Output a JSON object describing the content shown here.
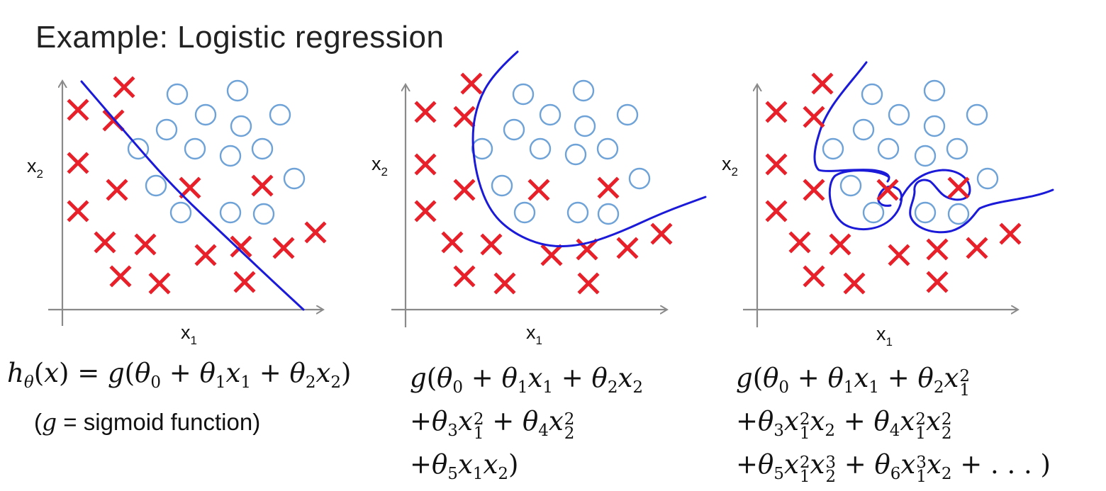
{
  "title": "Example: Logistic regression",
  "axes": {
    "x_label": "x",
    "x_sub": "1",
    "y_label": "x",
    "y_sub": "2"
  },
  "formula_1": {
    "lhs": "h",
    "sub_theta": "θ",
    "arg": "(x)",
    "eq": "=",
    "body": "g(θ0 + θ1x1 + θ2x2)"
  },
  "note": {
    "open": "(",
    "g": "g",
    "text": " = sigmoid function)"
  },
  "formula_2": {
    "line1": "g(θ0 + θ1x1 + θ2x2",
    "line2": "+θ3x1² + θ4x2²",
    "line3": "+θ5x1x2)"
  },
  "formula_3": {
    "line1": "g(θ0 + θ1x1 + θ2x1²",
    "line2": "+θ3x1²x2 + θ4x1²x2²",
    "line3": "+θ5x1²x2³ + θ6x1³x2 + . . . )"
  },
  "colors": {
    "cross": "#e8202a",
    "circle": "#6fa3d8",
    "boundary": "#1a1ad8",
    "axis": "#8a8a8a"
  },
  "panels": [
    {
      "id": "linear",
      "crosses": [
        [
          175,
          123
        ],
        [
          110,
          155
        ],
        [
          160,
          170
        ],
        [
          110,
          230
        ],
        [
          165,
          268
        ],
        [
          268,
          265
        ],
        [
          370,
          262
        ],
        [
          110,
          298
        ],
        [
          148,
          342
        ],
        [
          205,
          345
        ],
        [
          290,
          360
        ],
        [
          340,
          348
        ],
        [
          400,
          350
        ],
        [
          445,
          328
        ],
        [
          170,
          390
        ],
        [
          225,
          400
        ],
        [
          345,
          398
        ]
      ],
      "circles": [
        [
          250,
          133
        ],
        [
          335,
          128
        ],
        [
          290,
          162
        ],
        [
          395,
          162
        ],
        [
          235,
          183
        ],
        [
          340,
          178
        ],
        [
          195,
          210
        ],
        [
          275,
          210
        ],
        [
          325,
          220
        ],
        [
          370,
          210
        ],
        [
          220,
          262
        ],
        [
          415,
          252
        ],
        [
          255,
          300
        ],
        [
          325,
          300
        ],
        [
          372,
          302
        ]
      ],
      "boundary": [
        [
          115,
          115
        ],
        [
          175,
          185
        ],
        [
          245,
          265
        ],
        [
          330,
          345
        ],
        [
          372,
          385
        ],
        [
          428,
          437
        ]
      ]
    },
    {
      "id": "quadratic",
      "crosses": [
        [
          665,
          118
        ],
        [
          600,
          158
        ],
        [
          655,
          165
        ],
        [
          600,
          232
        ],
        [
          655,
          268
        ],
        [
          760,
          268
        ],
        [
          858,
          265
        ],
        [
          600,
          298
        ],
        [
          638,
          342
        ],
        [
          693,
          345
        ],
        [
          778,
          360
        ],
        [
          828,
          352
        ],
        [
          885,
          350
        ],
        [
          933,
          330
        ],
        [
          655,
          390
        ],
        [
          712,
          400
        ],
        [
          830,
          400
        ]
      ],
      "circles": [
        [
          738,
          133
        ],
        [
          823,
          128
        ],
        [
          776,
          162
        ],
        [
          885,
          162
        ],
        [
          725,
          183
        ],
        [
          825,
          178
        ],
        [
          680,
          210
        ],
        [
          762,
          210
        ],
        [
          812,
          218
        ],
        [
          857,
          210
        ],
        [
          708,
          262
        ],
        [
          902,
          252
        ],
        [
          740,
          300
        ],
        [
          815,
          300
        ],
        [
          858,
          302
        ]
      ],
      "boundary": [
        [
          730,
          73
        ],
        [
          700,
          100
        ],
        [
          675,
          140
        ],
        [
          665,
          190
        ],
        [
          672,
          250
        ],
        [
          692,
          300
        ],
        [
          725,
          330
        ],
        [
          770,
          348
        ],
        [
          818,
          347
        ],
        [
          870,
          330
        ],
        [
          935,
          300
        ],
        [
          995,
          278
        ]
      ]
    },
    {
      "id": "high-order",
      "crosses": [
        [
          1160,
          118
        ],
        [
          1095,
          158
        ],
        [
          1148,
          165
        ],
        [
          1095,
          232
        ],
        [
          1148,
          268
        ],
        [
          1252,
          268
        ],
        [
          1352,
          265
        ],
        [
          1095,
          298
        ],
        [
          1128,
          342
        ],
        [
          1185,
          345
        ],
        [
          1268,
          360
        ],
        [
          1322,
          352
        ],
        [
          1378,
          350
        ],
        [
          1425,
          330
        ],
        [
          1148,
          390
        ],
        [
          1205,
          400
        ],
        [
          1322,
          398
        ]
      ],
      "circles": [
        [
          1230,
          133
        ],
        [
          1318,
          128
        ],
        [
          1268,
          162
        ],
        [
          1378,
          162
        ],
        [
          1218,
          183
        ],
        [
          1318,
          178
        ],
        [
          1175,
          210
        ],
        [
          1253,
          210
        ],
        [
          1305,
          220
        ],
        [
          1350,
          210
        ],
        [
          1200,
          262
        ],
        [
          1393,
          252
        ],
        [
          1232,
          300
        ],
        [
          1305,
          300
        ],
        [
          1352,
          302
        ]
      ]
    }
  ]
}
